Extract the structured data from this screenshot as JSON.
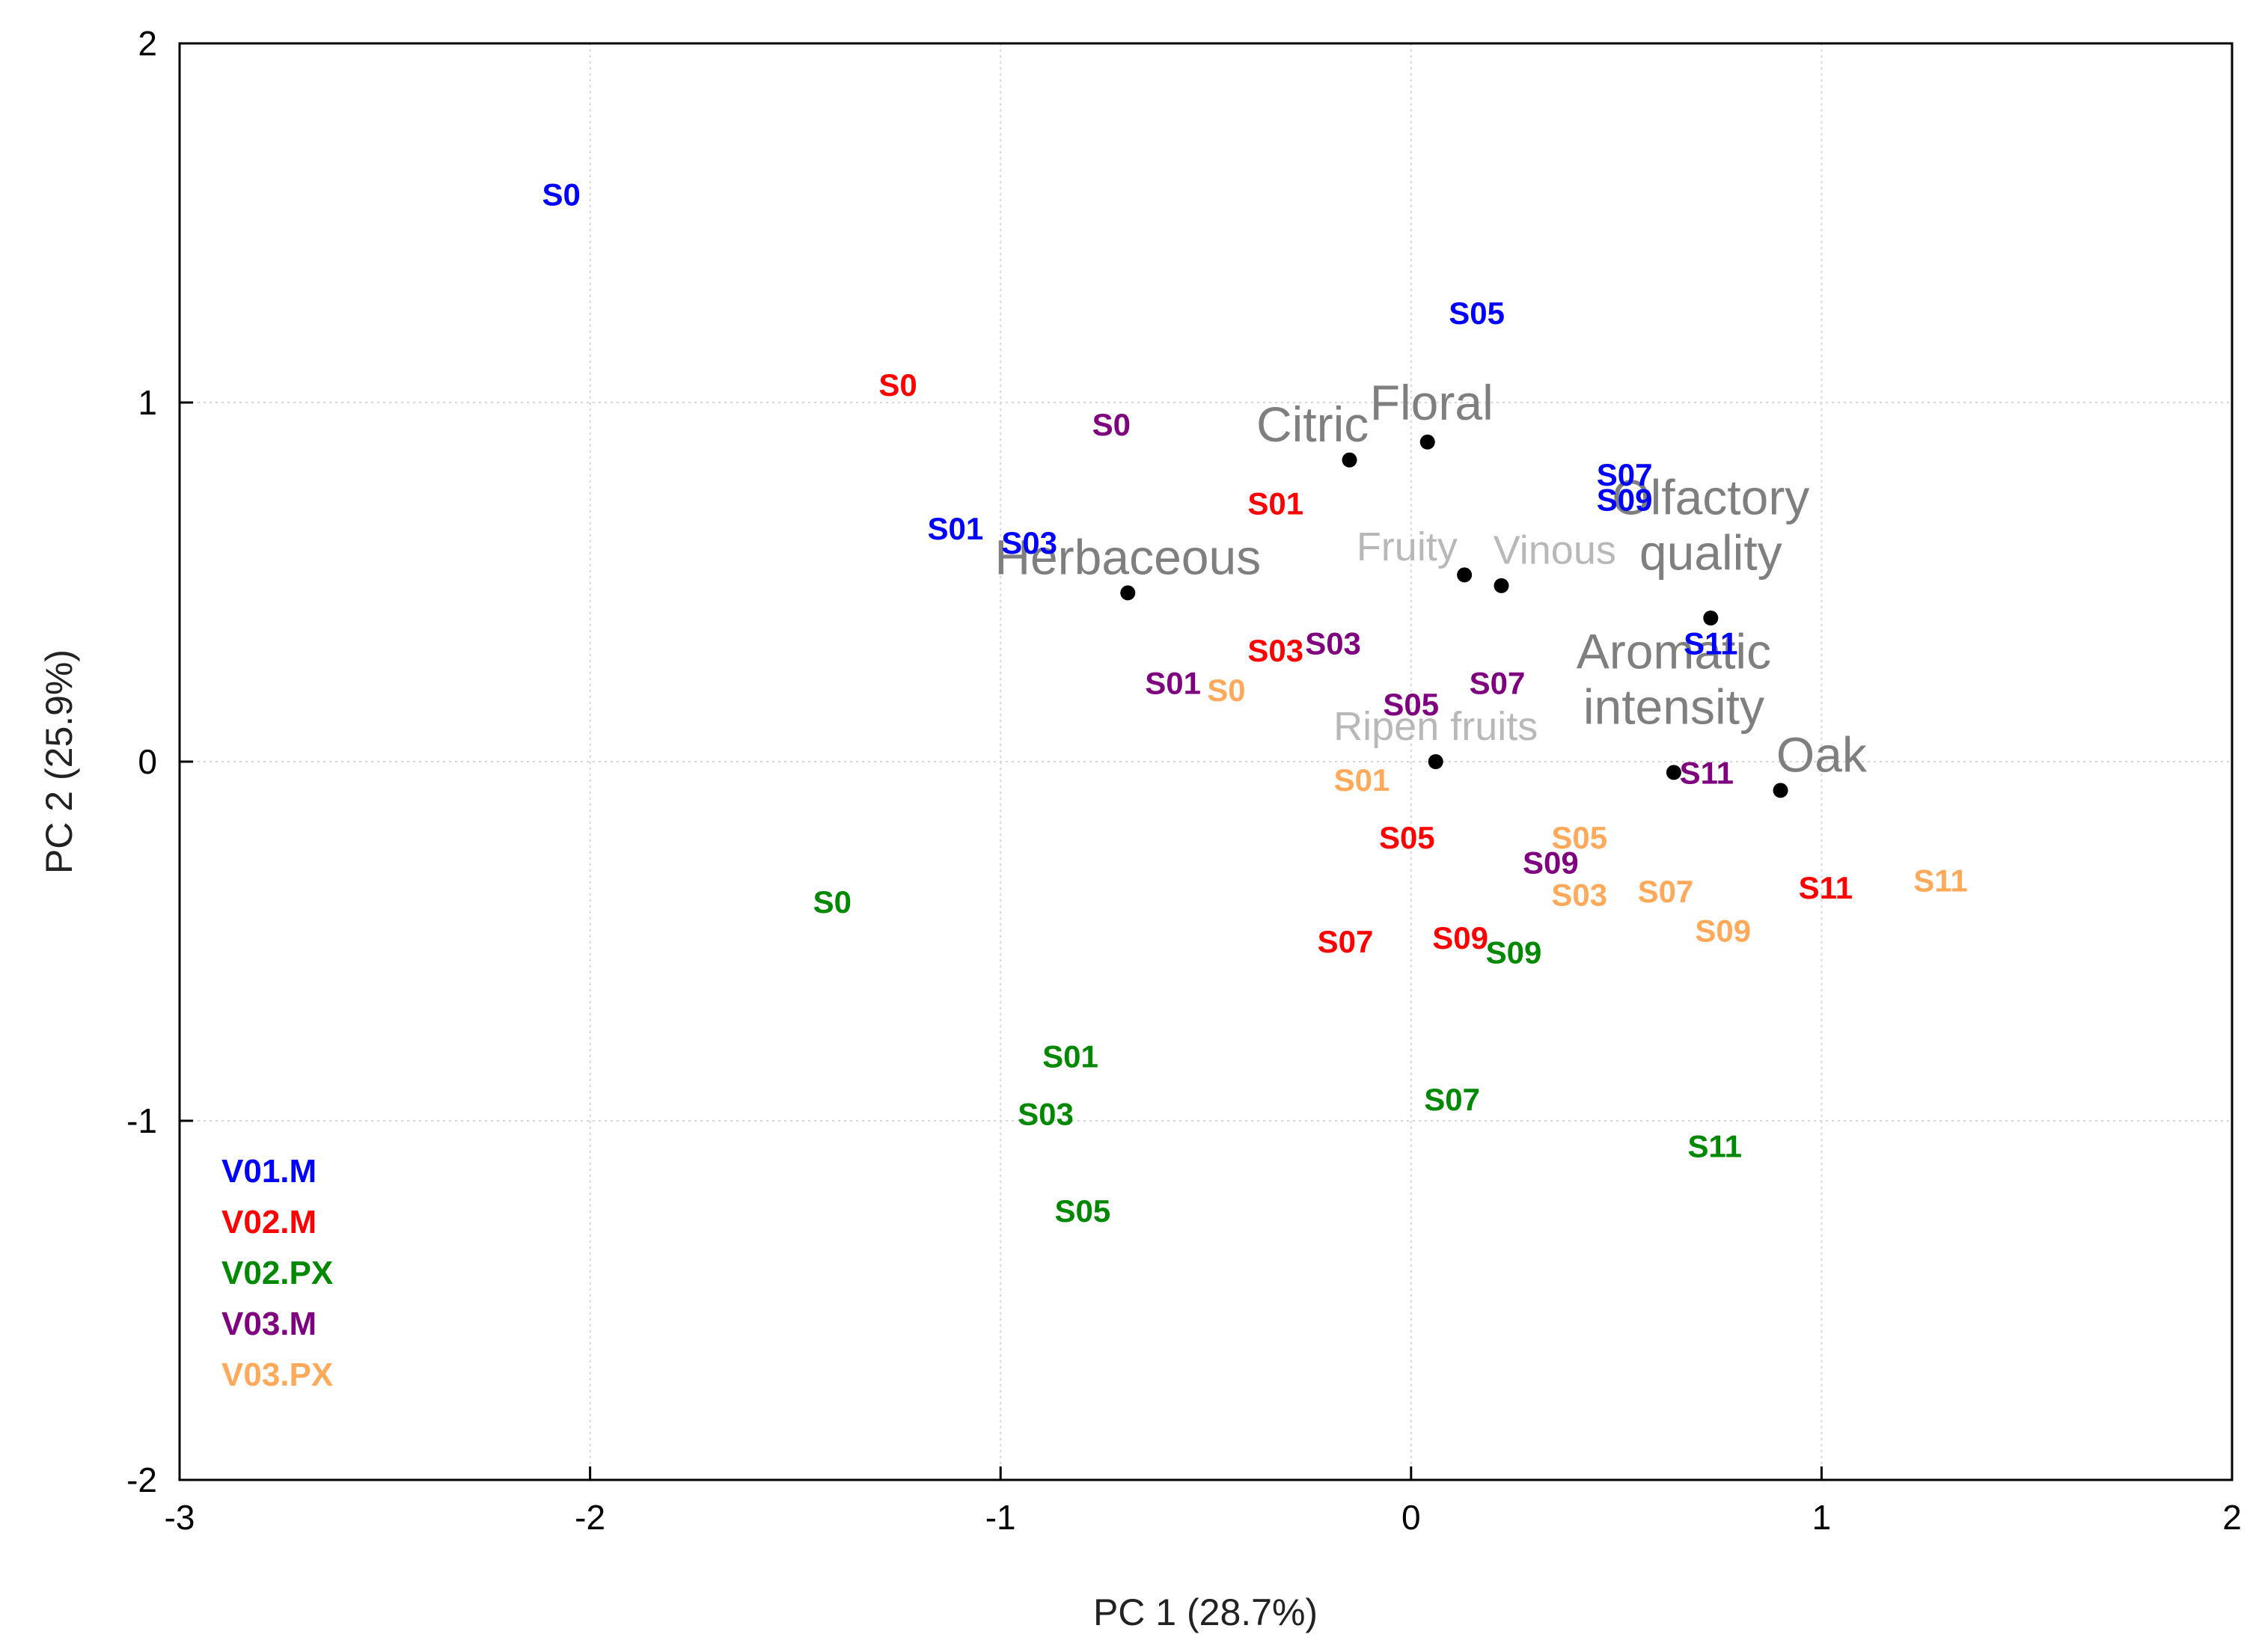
{
  "chart_data": {
    "type": "scatter",
    "title": "",
    "xlabel": "PC 1 (28.7%)",
    "ylabel": "PC 2 (25.9%)",
    "xlim": [
      -3,
      2
    ],
    "ylim": [
      -2,
      2
    ],
    "x_ticks": [
      "-3",
      "-2",
      "-1",
      "0",
      "1",
      "2"
    ],
    "y_ticks": [
      "2",
      "1",
      "0",
      "-1",
      "-2"
    ],
    "grid": true,
    "legend_position": "bottom-left",
    "colors": {
      "V01.M": "#0000ff",
      "V02.M": "#ff0000",
      "V02.PX": "#008800",
      "V03.M": "#7f007f",
      "V03.PX": "#ffaa5a",
      "variable_dark": "#7f7f7f",
      "variable_light": "#b8b8b8"
    },
    "legend": [
      "V01.M",
      "V02.M",
      "V02.PX",
      "V03.M",
      "V03.PX"
    ],
    "series": [
      {
        "name": "V01.M",
        "points": [
          {
            "label": "S0",
            "x": -2.07,
            "y": 1.58
          },
          {
            "label": "S01",
            "x": -1.11,
            "y": 0.65
          },
          {
            "label": "S03",
            "x": -0.93,
            "y": 0.61
          },
          {
            "label": "S05",
            "x": 0.16,
            "y": 1.25
          },
          {
            "label": "S07",
            "x": 0.52,
            "y": 0.8
          },
          {
            "label": "S09",
            "x": 0.52,
            "y": 0.73
          },
          {
            "label": "S11",
            "x": 0.73,
            "y": 0.33
          }
        ]
      },
      {
        "name": "V02.M",
        "points": [
          {
            "label": "S0",
            "x": -1.25,
            "y": 1.05
          },
          {
            "label": "S01",
            "x": -0.33,
            "y": 0.72
          },
          {
            "label": "S03",
            "x": -0.33,
            "y": 0.31
          },
          {
            "label": "S05",
            "x": -0.01,
            "y": -0.21
          },
          {
            "label": "S07",
            "x": -0.16,
            "y": -0.5
          },
          {
            "label": "S09",
            "x": 0.12,
            "y": -0.49
          },
          {
            "label": "S11",
            "x": 1.01,
            "y": -0.35
          }
        ]
      },
      {
        "name": "V02.PX",
        "points": [
          {
            "label": "S0",
            "x": -1.41,
            "y": -0.39
          },
          {
            "label": "S01",
            "x": -0.83,
            "y": -0.82
          },
          {
            "label": "S03",
            "x": -0.89,
            "y": -0.98
          },
          {
            "label": "S05",
            "x": -0.8,
            "y": -1.25
          },
          {
            "label": "S07",
            "x": 0.1,
            "y": -0.94
          },
          {
            "label": "S09",
            "x": 0.25,
            "y": -0.53
          },
          {
            "label": "S11",
            "x": 0.74,
            "y": -1.07
          }
        ]
      },
      {
        "name": "V03.M",
        "points": [
          {
            "label": "S0",
            "x": -0.73,
            "y": 0.94
          },
          {
            "label": "S01",
            "x": -0.58,
            "y": 0.22
          },
          {
            "label": "S03",
            "x": -0.19,
            "y": 0.33
          },
          {
            "label": "S05",
            "x": 0.0,
            "y": 0.16
          },
          {
            "label": "S07",
            "x": 0.21,
            "y": 0.22
          },
          {
            "label": "S09",
            "x": 0.34,
            "y": -0.28
          },
          {
            "label": "S11",
            "x": 0.72,
            "y": -0.03
          }
        ]
      },
      {
        "name": "V03.PX",
        "points": [
          {
            "label": "S0",
            "x": -0.45,
            "y": 0.2
          },
          {
            "label": "S01",
            "x": -0.12,
            "y": -0.05
          },
          {
            "label": "S03",
            "x": 0.41,
            "y": -0.37
          },
          {
            "label": "S05",
            "x": 0.41,
            "y": -0.21
          },
          {
            "label": "S07",
            "x": 0.62,
            "y": -0.36
          },
          {
            "label": "S09",
            "x": 0.76,
            "y": -0.47
          },
          {
            "label": "S11",
            "x": 1.29,
            "y": -0.33
          }
        ]
      }
    ],
    "variables": [
      {
        "lines": [
          "Floral"
        ],
        "x": 0.04,
        "y": 0.89,
        "label_x": 0.05,
        "label_y": 1.0,
        "tone": "dark"
      },
      {
        "lines": [
          "Citric"
        ],
        "x": -0.15,
        "y": 0.84,
        "label_x": -0.24,
        "label_y": 0.94,
        "tone": "dark"
      },
      {
        "lines": [
          "Herbaceous"
        ],
        "x": -0.69,
        "y": 0.47,
        "label_x": -0.69,
        "label_y": 0.57,
        "tone": "dark"
      },
      {
        "lines": [
          "Fruity"
        ],
        "x": 0.13,
        "y": 0.52,
        "label_x": -0.01,
        "label_y": 0.6,
        "tone": "light"
      },
      {
        "lines": [
          "Vinous"
        ],
        "x": 0.22,
        "y": 0.49,
        "label_x": 0.35,
        "label_y": 0.59,
        "tone": "light"
      },
      {
        "lines": [
          "Olfactory",
          "quality"
        ],
        "x": 0.73,
        "y": 0.4,
        "label_x": 0.73,
        "label_y": 0.66,
        "tone": "dark"
      },
      {
        "lines": [
          "Aromatic",
          "intensity"
        ],
        "x": 0.64,
        "y": -0.03,
        "label_x": 0.64,
        "label_y": 0.23,
        "tone": "dark"
      },
      {
        "lines": [
          "Oak"
        ],
        "x": 0.9,
        "y": -0.08,
        "label_x": 1.0,
        "label_y": 0.02,
        "tone": "dark"
      },
      {
        "lines": [
          "Ripen fruits"
        ],
        "x": 0.06,
        "y": 0.0,
        "label_x": 0.06,
        "label_y": 0.1,
        "tone": "light"
      }
    ]
  }
}
